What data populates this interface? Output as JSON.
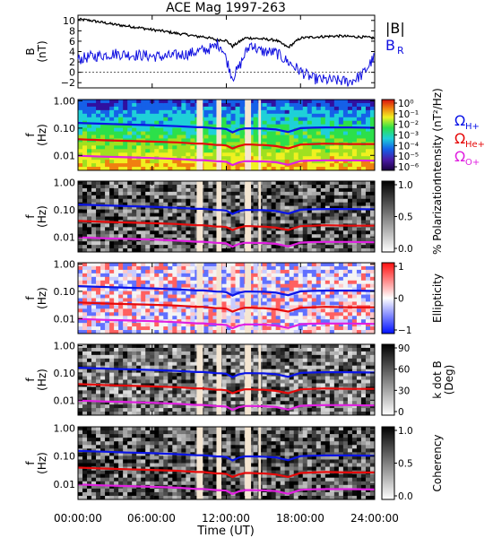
{
  "chart_data": {
    "title": "ACE Mag 1997-263",
    "xlabel": "Time (UT)",
    "x_tick_labels": [
      "00:00:00",
      "06:00:00",
      "12:00:00",
      "18:00:00",
      "24:00:00"
    ],
    "x_range_hours": [
      0,
      24
    ],
    "gaps_hours": [
      [
        9.6,
        10.1
      ],
      [
        11.2,
        11.6
      ],
      [
        13.5,
        14.0
      ],
      [
        14.6,
        14.8
      ]
    ],
    "colors": {
      "B_total": "#000000",
      "B_R": "#1010e0",
      "H_plus": "#0a14e6",
      "He_plus": "#e60a0a",
      "O_plus": "#e020e0",
      "gap": "#f5e6d2"
    },
    "panels": [
      {
        "id": "b-field",
        "type": "line",
        "ylabel": "B\n(nT)",
        "ylim": [
          -3,
          11
        ],
        "y_ticks": [
          10,
          8,
          6,
          4,
          2,
          0,
          -2
        ],
        "y_tick_labels": [
          "10",
          "8",
          "6",
          "4",
          "2",
          "0",
          "−2"
        ],
        "legend": [
          "|B|",
          "B"
        ],
        "legend_subscript_R": "R",
        "series": [
          {
            "name": "|B|",
            "x": [
              0,
              1,
              2,
              3,
              4,
              5,
              6,
              7,
              8,
              9,
              9.6,
              10.1,
              11,
              11.2,
              11.6,
              12,
              12.5,
              13,
              13.5,
              14,
              14.6,
              15,
              16,
              17,
              18,
              19,
              20,
              21,
              22,
              23,
              24
            ],
            "values": [
              10.2,
              10.0,
              9.6,
              9.2,
              8.9,
              8.6,
              8.2,
              7.9,
              7.5,
              7.2,
              6.9,
              6.9,
              6.4,
              6.2,
              6.3,
              6.1,
              5.0,
              5.8,
              6.6,
              6.6,
              6.5,
              6.4,
              6.2,
              4.8,
              6.6,
              6.8,
              6.9,
              7.0,
              6.9,
              6.8,
              6.6
            ]
          },
          {
            "name": "B_R",
            "x": [
              0,
              1,
              2,
              3,
              4,
              5,
              6,
              7,
              8,
              9,
              9.6,
              10.1,
              11,
              11.2,
              11.6,
              12,
              12.5,
              13,
              13.5,
              14,
              14.6,
              15,
              16,
              17,
              18,
              19,
              20,
              21,
              22,
              23,
              24
            ],
            "values": [
              2.5,
              3.0,
              3.3,
              3.6,
              3.4,
              3.3,
              3.1,
              3.0,
              3.3,
              3.6,
              4.0,
              4.2,
              4.8,
              5.5,
              5.0,
              2.5,
              -1.0,
              0.8,
              3.5,
              5.6,
              4.2,
              4.0,
              3.8,
              2.0,
              0.2,
              -1.2,
              -1.5,
              -1.6,
              -1.8,
              -0.5,
              3.0
            ]
          }
        ]
      },
      {
        "id": "intensity",
        "type": "heatmap",
        "ylabel": "f\n(Hz)",
        "y_ticks": [
          1.0,
          0.1,
          0.01
        ],
        "y_tick_labels": [
          "1.00",
          "0.10",
          "0.01"
        ],
        "ylim_log10": [
          -2.55,
          0.05
        ],
        "colorbar_label": "Intensity (nT²/Hz)",
        "colorbar_ticks": [
          "10⁰",
          "10⁻¹",
          "10⁻²",
          "10⁻³",
          "10⁻⁴",
          "10⁻⁵",
          "10⁻⁶"
        ],
        "side_legend": [
          "Ω",
          "Ω",
          "Ω"
        ],
        "side_legend_subscripts": [
          "H+",
          "He+",
          "O+"
        ]
      },
      {
        "id": "polarization",
        "type": "heatmap",
        "ylabel": "f\n(Hz)",
        "y_ticks": [
          1.0,
          0.1,
          0.01
        ],
        "y_tick_labels": [
          "1.00",
          "0.10",
          "0.01"
        ],
        "ylim_log10": [
          -2.55,
          0.05
        ],
        "colorbar_label": "% Polarization",
        "colorbar_ticks": [
          "1.0",
          "0.5",
          "0.0"
        ]
      },
      {
        "id": "ellipticity",
        "type": "heatmap",
        "ylabel": "f\n(Hz)",
        "y_ticks": [
          1.0,
          0.1,
          0.01
        ],
        "y_tick_labels": [
          "1.00",
          "0.10",
          "0.01"
        ],
        "ylim_log10": [
          -2.55,
          0.05
        ],
        "colorbar_label": "Ellipticity",
        "colorbar_ticks": [
          "1",
          "0",
          "−1"
        ]
      },
      {
        "id": "k-dot-b",
        "type": "heatmap",
        "ylabel": "f\n(Hz)",
        "y_ticks": [
          1.0,
          0.1,
          0.01
        ],
        "y_tick_labels": [
          "1.00",
          "0.10",
          "0.01"
        ],
        "ylim_log10": [
          -2.55,
          0.05
        ],
        "colorbar_label": "k dot B\n(Deg)",
        "colorbar_ticks": [
          "90",
          "60",
          "30",
          "0"
        ]
      },
      {
        "id": "coherency",
        "type": "heatmap",
        "ylabel": "f\n(Hz)",
        "y_ticks": [
          1.0,
          0.1,
          0.01
        ],
        "y_tick_labels": [
          "1.00",
          "0.10",
          "0.01"
        ],
        "ylim_log10": [
          -2.55,
          0.05
        ],
        "colorbar_label": "Coherency",
        "colorbar_ticks": [
          "1.0",
          "0.5",
          "0.0"
        ]
      }
    ],
    "gyrofrequencies_hz": {
      "x": [
        0,
        2,
        4,
        6,
        8,
        9.6,
        10.1,
        11.2,
        11.6,
        12,
        12.5,
        13,
        13.5,
        14,
        14.6,
        15,
        16,
        17,
        18,
        19,
        20,
        22,
        24
      ],
      "H_plus": [
        0.155,
        0.145,
        0.135,
        0.128,
        0.118,
        0.108,
        0.108,
        0.098,
        0.097,
        0.093,
        0.07,
        0.088,
        0.098,
        0.098,
        0.097,
        0.096,
        0.09,
        0.072,
        0.1,
        0.104,
        0.106,
        0.106,
        0.103
      ],
      "He_plus": [
        0.039,
        0.036,
        0.034,
        0.032,
        0.03,
        0.027,
        0.027,
        0.024,
        0.024,
        0.023,
        0.018,
        0.022,
        0.025,
        0.025,
        0.024,
        0.024,
        0.022,
        0.018,
        0.025,
        0.026,
        0.027,
        0.026,
        0.026
      ],
      "O_plus": [
        0.0097,
        0.009,
        0.0085,
        0.008,
        0.0074,
        0.0067,
        0.0067,
        0.0061,
        0.006,
        0.0058,
        0.0044,
        0.0055,
        0.0061,
        0.0061,
        0.006,
        0.006,
        0.0056,
        0.0045,
        0.0062,
        0.0065,
        0.0066,
        0.0066,
        0.0064
      ]
    }
  }
}
